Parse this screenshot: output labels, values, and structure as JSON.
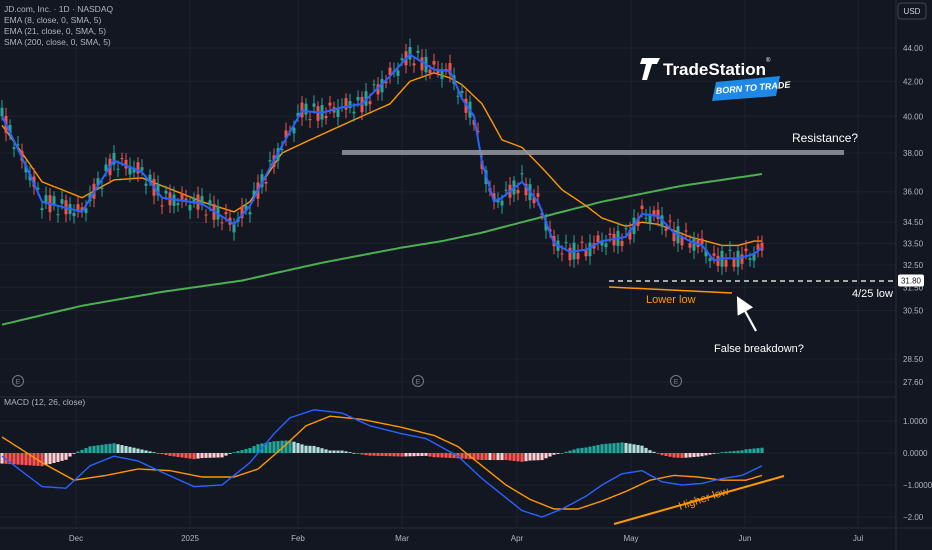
{
  "header": {
    "symbol_line": "JD.com, Inc. · 1D · NASDAQ",
    "indicators": [
      "EMA (8, close, 0, SMA, 5)",
      "EMA (21, close, 0, SMA, 5)",
      "SMA (200, close, 0, SMA, 5)"
    ],
    "currency": "USD"
  },
  "brand": {
    "name": "TradeStation",
    "registered": "®",
    "tagline": "BORN TO TRADE"
  },
  "macd_label": "MACD (12, 26, close)",
  "earnings_marker": "E",
  "colors": {
    "background": "#131722",
    "grid": "#1e222d",
    "text": "#b2b5be",
    "candle_up": "#26a69a",
    "candle_down": "#ef5350",
    "ema8": "#2962ff",
    "ema21": "#ff9800",
    "sma200": "#4caf50",
    "annotation_orange": "#ff9800",
    "annotation_white": "#ffffff",
    "resistance": "#9598a1"
  },
  "chart_data": [
    {
      "type": "candlestick",
      "title": "JD.com, Inc. · 1D · NASDAQ",
      "ylabel": "USD",
      "ylim": [
        27.2,
        46.3
      ],
      "price_axis": {
        "scale": "log",
        "ticks": [
          44.0,
          42.0,
          40.0,
          38.0,
          36.0,
          34.5,
          33.5,
          32.5,
          31.5,
          30.5,
          28.5,
          27.6
        ]
      },
      "time_axis": {
        "labels": [
          "Dec",
          "2025",
          "Feb",
          "Mar",
          "Apr",
          "May",
          "Jun",
          "Jul"
        ]
      },
      "grid": true,
      "last_price": 31.8,
      "moving_averages": [
        {
          "name": "EMA 8",
          "color": "#2962ff",
          "t": [
            0,
            10,
            20,
            28,
            35,
            40,
            50,
            58,
            62,
            75,
            80,
            85,
            90,
            97,
            102,
            108,
            112,
            115,
            118,
            120,
            123,
            125,
            130,
            134,
            136,
            138,
            142,
            146,
            150,
            156,
            160,
            164,
            168,
            172,
            175,
            178,
            180,
            184,
            188,
            190
          ],
          "values": [
            40.0,
            35.5,
            35.0,
            37.6,
            37.0,
            35.7,
            35.4,
            34.4,
            35.3,
            40.3,
            40.2,
            40.5,
            40.7,
            42.3,
            43.6,
            42.7,
            42.6,
            41.0,
            40.0,
            37.5,
            35.5,
            35.7,
            36.5,
            35.5,
            34.5,
            33.5,
            33.1,
            33.2,
            33.6,
            33.8,
            34.9,
            34.8,
            34.0,
            33.6,
            33.4,
            32.7,
            32.8,
            32.8,
            33.0,
            33.3
          ]
        },
        {
          "name": "EMA 21",
          "color": "#ff9800",
          "t": [
            0,
            10,
            20,
            28,
            35,
            40,
            50,
            58,
            62,
            70,
            80,
            90,
            97,
            102,
            108,
            112,
            115,
            120,
            125,
            130,
            136,
            140,
            146,
            150,
            156,
            160,
            164,
            168,
            172,
            176,
            180,
            184,
            188,
            190
          ],
          "values": [
            39.5,
            36.5,
            35.7,
            36.6,
            36.7,
            36.3,
            35.5,
            35.0,
            35.5,
            38.0,
            39.0,
            40.0,
            40.7,
            42.0,
            42.5,
            42.2,
            41.8,
            40.7,
            38.7,
            38.3,
            37.0,
            36.1,
            35.3,
            34.7,
            34.3,
            34.5,
            34.4,
            34.1,
            33.8,
            33.6,
            33.4,
            33.4,
            33.6,
            33.6
          ]
        },
        {
          "name": "SMA 200",
          "color": "#4caf50",
          "t": [
            0,
            10,
            20,
            30,
            40,
            50,
            60,
            70,
            80,
            90,
            100,
            110,
            120,
            130,
            140,
            150,
            160,
            170,
            180,
            190
          ],
          "values": [
            29.9,
            30.3,
            30.7,
            31.0,
            31.3,
            31.55,
            31.8,
            32.2,
            32.6,
            32.95,
            33.3,
            33.6,
            34.0,
            34.5,
            35.0,
            35.5,
            35.9,
            36.3,
            36.6,
            36.9
          ]
        }
      ],
      "annotations": [
        {
          "type": "resistance_line",
          "price": 38.0,
          "label": "Resistance?"
        },
        {
          "type": "support_line",
          "price": 31.8,
          "label": "4/25 low"
        },
        {
          "type": "trend_line",
          "label": "Lower low"
        },
        {
          "type": "arrow",
          "label": "False breakdown?"
        }
      ]
    },
    {
      "type": "line",
      "title": "MACD (12, 26, close)",
      "ylim": [
        -2.1,
        1.25
      ],
      "yticks": [
        "1.0000",
        "0.0000",
        "−1.0000",
        "−2.00"
      ],
      "grid": true,
      "series": [
        {
          "name": "MACD",
          "color": "#2962ff",
          "t": [
            0,
            10,
            16,
            22,
            28,
            34,
            40,
            48,
            55,
            62,
            68,
            72,
            78,
            85,
            92,
            100,
            106,
            114,
            120,
            125,
            130,
            135,
            140,
            146,
            150,
            155,
            160,
            165,
            170,
            175,
            180,
            185,
            190
          ],
          "values": [
            -0.1,
            -1.05,
            -1.1,
            -0.4,
            -0.1,
            -0.25,
            -0.6,
            -1.05,
            -1.0,
            -0.3,
            0.6,
            1.1,
            1.35,
            1.25,
            0.85,
            0.6,
            0.45,
            -0.1,
            -0.8,
            -1.3,
            -1.8,
            -2.0,
            -1.75,
            -1.35,
            -1.0,
            -0.65,
            -0.55,
            -0.9,
            -1.0,
            -0.95,
            -0.8,
            -0.7,
            -0.4
          ]
        },
        {
          "name": "Signal",
          "color": "#ff9800",
          "t": [
            0,
            10,
            18,
            26,
            34,
            42,
            50,
            58,
            64,
            70,
            76,
            82,
            90,
            100,
            108,
            114,
            120,
            126,
            132,
            138,
            144,
            150,
            156,
            162,
            168,
            174,
            180,
            186,
            190
          ],
          "values": [
            0.5,
            -0.3,
            -0.85,
            -0.7,
            -0.5,
            -0.55,
            -0.75,
            -0.75,
            -0.5,
            0.15,
            0.85,
            1.15,
            1.05,
            0.8,
            0.55,
            0.2,
            -0.4,
            -1.0,
            -1.45,
            -1.75,
            -1.75,
            -1.5,
            -1.2,
            -0.85,
            -0.7,
            -0.75,
            -0.85,
            -0.85,
            -0.7
          ]
        }
      ],
      "annotations": [
        {
          "type": "trend_line",
          "label": "Higher low"
        }
      ]
    }
  ]
}
